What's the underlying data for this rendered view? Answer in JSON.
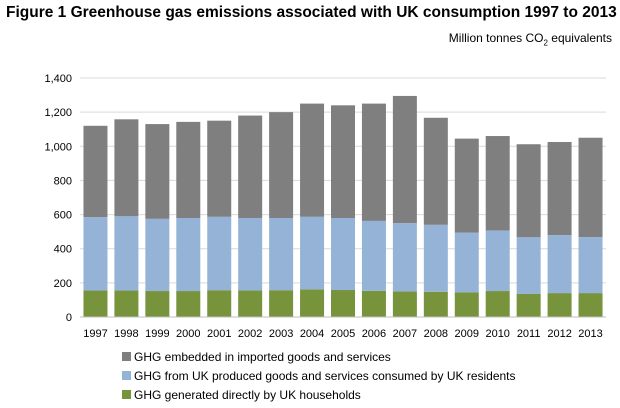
{
  "title": "Figure 1 Greenhouse gas emissions associated with UK consumption 1997 to 2013",
  "units": {
    "before": "Million tonnes CO",
    "sub": "2",
    "after": " equivalents"
  },
  "chart_data": {
    "type": "bar",
    "stacked": true,
    "categories": [
      "1997",
      "1998",
      "1999",
      "2000",
      "2001",
      "2002",
      "2003",
      "2004",
      "2005",
      "2006",
      "2007",
      "2008",
      "2009",
      "2010",
      "2011",
      "2012",
      "2013"
    ],
    "series": [
      {
        "name": "GHG generated directly by UK households",
        "color": "#77933c",
        "values": [
          155,
          155,
          152,
          152,
          157,
          155,
          157,
          162,
          158,
          153,
          150,
          148,
          145,
          152,
          135,
          140,
          140
        ]
      },
      {
        "name": "GHG from UK produced goods and services consumed by UK residents",
        "color": "#95b3d7",
        "values": [
          430,
          435,
          423,
          428,
          430,
          425,
          423,
          425,
          422,
          410,
          400,
          392,
          350,
          355,
          332,
          340,
          328
        ]
      },
      {
        "name": "GHG embedded in imported goods and services",
        "color": "#7f7f7f",
        "values": [
          535,
          568,
          555,
          563,
          563,
          600,
          620,
          663,
          660,
          687,
          745,
          627,
          550,
          553,
          545,
          545,
          582
        ]
      }
    ],
    "legend_order": [
      2,
      1,
      0
    ],
    "y_ticks": [
      "0",
      "200",
      "400",
      "600",
      "800",
      "1,000",
      "1,200",
      "1,400"
    ],
    "ylim": [
      0,
      1400
    ],
    "grid": true,
    "legend_position": "bottom"
  }
}
